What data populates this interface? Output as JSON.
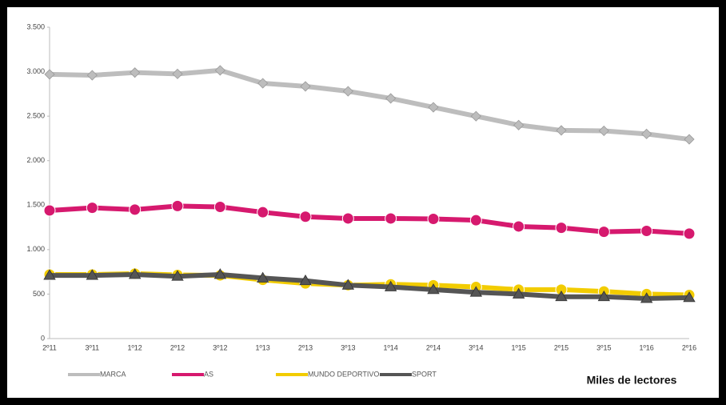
{
  "chart_data": {
    "type": "line",
    "annotation": "Miles de lectores",
    "categories": [
      "2º11",
      "3º11",
      "1º12",
      "2º12",
      "3º12",
      "1º13",
      "2º13",
      "3º13",
      "1º14",
      "2º14",
      "3º14",
      "1º15",
      "2º15",
      "3º15",
      "1º16",
      "2º16"
    ],
    "series": [
      {
        "name": "MARCA",
        "color": "#bdbdbd",
        "marker": "diamond",
        "values": [
          2970,
          2960,
          2990,
          2975,
          3015,
          2870,
          2835,
          2780,
          2700,
          2600,
          2500,
          2400,
          2340,
          2335,
          2300,
          2240
        ]
      },
      {
        "name": "AS",
        "color": "#d6196e",
        "marker": "circle",
        "values": [
          1440,
          1470,
          1450,
          1490,
          1480,
          1420,
          1370,
          1350,
          1350,
          1345,
          1330,
          1260,
          1245,
          1200,
          1210,
          1180
        ]
      },
      {
        "name": "MUNDO DEPORTIVO",
        "color": "#f2cc00",
        "marker": "circle",
        "values": [
          720,
          720,
          730,
          715,
          710,
          660,
          620,
          600,
          610,
          600,
          580,
          550,
          550,
          530,
          500,
          490
        ]
      },
      {
        "name": "SPORT",
        "color": "#555555",
        "marker": "triangle",
        "values": [
          710,
          710,
          720,
          700,
          720,
          680,
          650,
          600,
          580,
          550,
          520,
          500,
          470,
          470,
          450,
          460
        ]
      }
    ],
    "ylim": [
      0,
      3500
    ],
    "yticks": [
      0,
      500,
      {
        "value": 1000,
        "label": "1.000"
      },
      {
        "value": 1500,
        "label": "1.500"
      },
      {
        "value": 2000,
        "label": "2.000"
      },
      {
        "value": 2500,
        "label": "2.500"
      },
      {
        "value": 3000,
        "label": "3.000"
      },
      {
        "value": 3500,
        "label": "3.500"
      }
    ],
    "grid": false
  }
}
